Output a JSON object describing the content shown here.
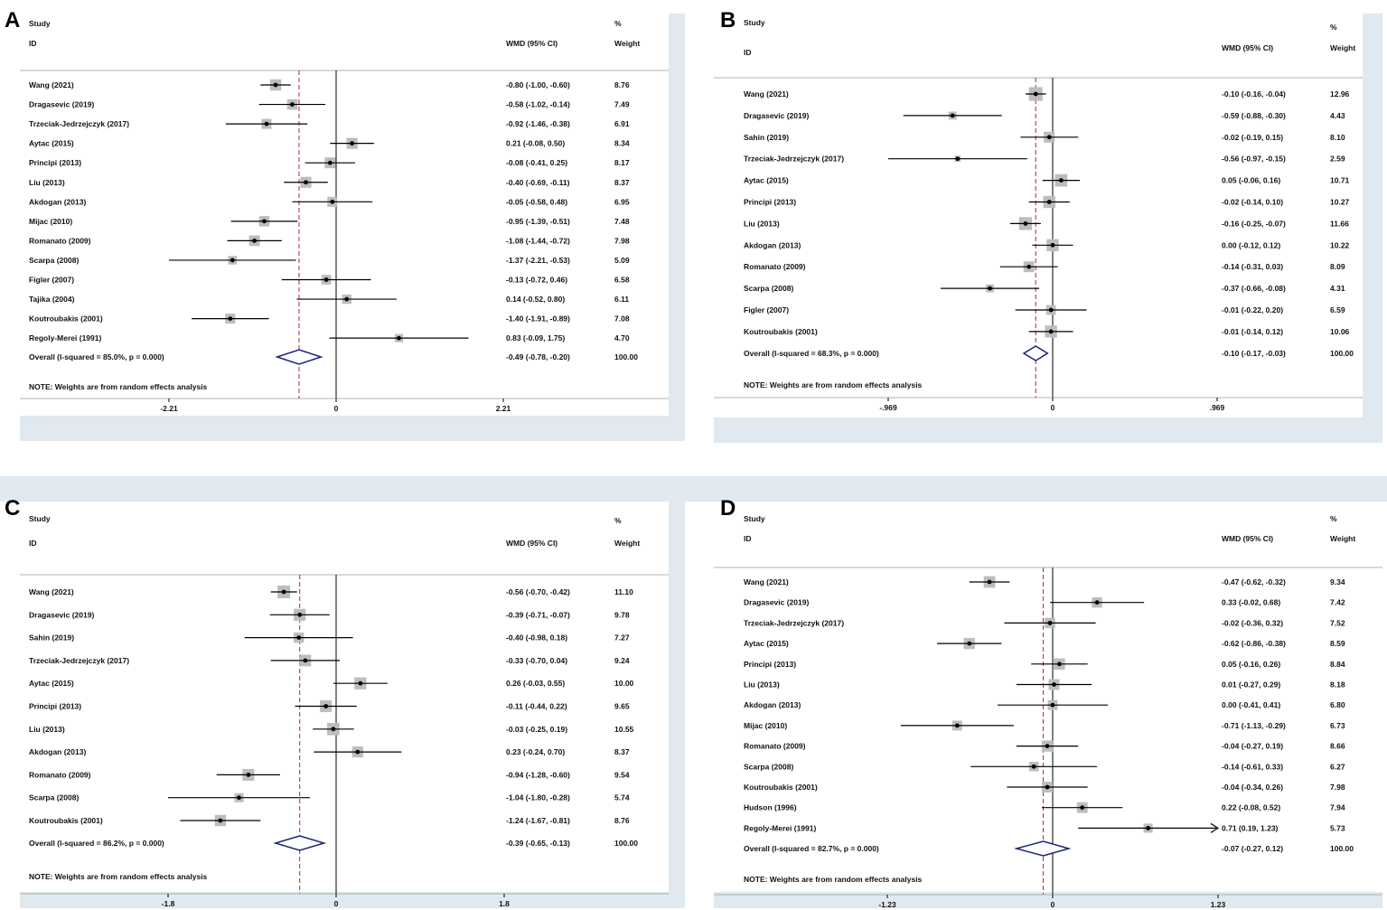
{
  "chart_data": [
    {
      "type": "forest",
      "panel": "A",
      "header": {
        "study": "Study",
        "id": "ID",
        "effect": "WMD (95% CI)",
        "pct": "%",
        "weight": "Weight"
      },
      "xlim": [
        -2.21,
        2.21
      ],
      "ticks": [
        {
          "v": -2.21,
          "label": "-2.21"
        },
        {
          "v": 0,
          "label": "0"
        },
        {
          "v": 2.21,
          "label": "2.21"
        }
      ],
      "studies": [
        {
          "id": "Wang (2021)",
          "est": -0.8,
          "lo": -1.0,
          "hi": -0.6,
          "weight": 8.76
        },
        {
          "id": "Dragasevic (2019)",
          "est": -0.58,
          "lo": -1.02,
          "hi": -0.14,
          "weight": 7.49
        },
        {
          "id": "Trzeciak-Jedrzejczyk (2017)",
          "est": -0.92,
          "lo": -1.46,
          "hi": -0.38,
          "weight": 6.91
        },
        {
          "id": "Aytac (2015)",
          "est": 0.21,
          "lo": -0.08,
          "hi": 0.5,
          "weight": 8.34
        },
        {
          "id": "Principi (2013)",
          "est": -0.08,
          "lo": -0.41,
          "hi": 0.25,
          "weight": 8.17
        },
        {
          "id": "Liu (2013)",
          "est": -0.4,
          "lo": -0.69,
          "hi": -0.11,
          "weight": 8.37
        },
        {
          "id": "Akdogan (2013)",
          "est": -0.05,
          "lo": -0.58,
          "hi": 0.48,
          "weight": 6.95
        },
        {
          "id": "Mijac (2010)",
          "est": -0.95,
          "lo": -1.39,
          "hi": -0.51,
          "weight": 7.48
        },
        {
          "id": "Romanato (2009)",
          "est": -1.08,
          "lo": -1.44,
          "hi": -0.72,
          "weight": 7.98
        },
        {
          "id": "Scarpa (2008)",
          "est": -1.37,
          "lo": -2.21,
          "hi": -0.53,
          "weight": 5.09
        },
        {
          "id": "Figler (2007)",
          "est": -0.13,
          "lo": -0.72,
          "hi": 0.46,
          "weight": 6.58
        },
        {
          "id": "Tajika (2004)",
          "est": 0.14,
          "lo": -0.52,
          "hi": 0.8,
          "weight": 6.11
        },
        {
          "id": "Koutroubakis (2001)",
          "est": -1.4,
          "lo": -1.91,
          "hi": -0.89,
          "weight": 7.08
        },
        {
          "id": "Regoly-Merei (1991)",
          "est": 0.83,
          "lo": -0.09,
          "hi": 1.75,
          "weight": 4.7
        }
      ],
      "overall": {
        "label": "Overall  (I-squared = 85.0%, p = 0.000)",
        "est": -0.49,
        "lo": -0.78,
        "hi": -0.2,
        "weight": 100.0
      },
      "note": "NOTE: Weights are from random effects analysis"
    },
    {
      "type": "forest",
      "panel": "B",
      "header": {
        "study": "Study",
        "id": "ID",
        "effect": "WMD (95% CI)",
        "pct": "%",
        "weight": "Weight"
      },
      "xlim": [
        -0.969,
        0.969
      ],
      "ticks": [
        {
          "v": -0.969,
          "label": "-.969"
        },
        {
          "v": 0,
          "label": "0"
        },
        {
          "v": 0.969,
          "label": ".969"
        }
      ],
      "studies": [
        {
          "id": "Wang (2021)",
          "est": -0.1,
          "lo": -0.16,
          "hi": -0.04,
          "weight": 12.96
        },
        {
          "id": "Dragasevic (2019)",
          "est": -0.59,
          "lo": -0.88,
          "hi": -0.3,
          "weight": 4.43
        },
        {
          "id": "Sahin (2019)",
          "est": -0.02,
          "lo": -0.19,
          "hi": 0.15,
          "weight": 8.1
        },
        {
          "id": "Trzeciak-Jedrzejczyk (2017)",
          "est": -0.56,
          "lo": -0.97,
          "hi": -0.15,
          "weight": 2.59
        },
        {
          "id": "Aytac (2015)",
          "est": 0.05,
          "lo": -0.06,
          "hi": 0.16,
          "weight": 10.71
        },
        {
          "id": "Principi (2013)",
          "est": -0.02,
          "lo": -0.14,
          "hi": 0.1,
          "weight": 10.27
        },
        {
          "id": "Liu (2013)",
          "est": -0.16,
          "lo": -0.25,
          "hi": -0.07,
          "weight": 11.66
        },
        {
          "id": "Akdogan (2013)",
          "est": 0.0,
          "lo": -0.12,
          "hi": 0.12,
          "weight": 10.22
        },
        {
          "id": "Romanato (2009)",
          "est": -0.14,
          "lo": -0.31,
          "hi": 0.03,
          "weight": 8.09
        },
        {
          "id": "Scarpa (2008)",
          "est": -0.37,
          "lo": -0.66,
          "hi": -0.08,
          "weight": 4.31
        },
        {
          "id": "Figler (2007)",
          "est": -0.01,
          "lo": -0.22,
          "hi": 0.2,
          "weight": 6.59
        },
        {
          "id": "Koutroubakis (2001)",
          "est": -0.01,
          "lo": -0.14,
          "hi": 0.12,
          "weight": 10.06
        }
      ],
      "overall": {
        "label": "Overall  (I-squared = 68.3%, p = 0.000)",
        "est": -0.1,
        "lo": -0.17,
        "hi": -0.03,
        "weight": 100.0
      },
      "note": "NOTE: Weights are from random effects analysis"
    },
    {
      "type": "forest",
      "panel": "C",
      "header": {
        "study": "Study",
        "id": "ID",
        "effect": "WMD (95% CI)",
        "pct": "%",
        "weight": "Weight"
      },
      "xlim": [
        -1.8,
        1.8
      ],
      "ticks": [
        {
          "v": -1.8,
          "label": "-1.8"
        },
        {
          "v": 0,
          "label": "0"
        },
        {
          "v": 1.8,
          "label": "1.8"
        }
      ],
      "studies": [
        {
          "id": "Wang (2021)",
          "est": -0.56,
          "lo": -0.7,
          "hi": -0.42,
          "weight": 11.1
        },
        {
          "id": "Dragasevic (2019)",
          "est": -0.39,
          "lo": -0.71,
          "hi": -0.07,
          "weight": 9.78
        },
        {
          "id": "Sahin (2019)",
          "est": -0.4,
          "lo": -0.98,
          "hi": 0.18,
          "weight": 7.27
        },
        {
          "id": "Trzeciak-Jedrzejczyk (2017)",
          "est": -0.33,
          "lo": -0.7,
          "hi": 0.04,
          "weight": 9.24
        },
        {
          "id": "Aytac (2015)",
          "est": 0.26,
          "lo": -0.03,
          "hi": 0.55,
          "weight": 10.0
        },
        {
          "id": "Principi (2013)",
          "est": -0.11,
          "lo": -0.44,
          "hi": 0.22,
          "weight": 9.65
        },
        {
          "id": "Liu (2013)",
          "est": -0.03,
          "lo": -0.25,
          "hi": 0.19,
          "weight": 10.55
        },
        {
          "id": "Akdogan (2013)",
          "est": 0.23,
          "lo": -0.24,
          "hi": 0.7,
          "weight": 8.37
        },
        {
          "id": "Romanato (2009)",
          "est": -0.94,
          "lo": -1.28,
          "hi": -0.6,
          "weight": 9.54
        },
        {
          "id": "Scarpa (2008)",
          "est": -1.04,
          "lo": -1.8,
          "hi": -0.28,
          "weight": 5.74
        },
        {
          "id": "Koutroubakis (2001)",
          "est": -1.24,
          "lo": -1.67,
          "hi": -0.81,
          "weight": 8.76
        }
      ],
      "overall": {
        "label": "Overall  (I-squared = 86.2%, p = 0.000)",
        "est": -0.39,
        "lo": -0.65,
        "hi": -0.13,
        "weight": 100.0
      },
      "note": "NOTE: Weights are from random effects analysis"
    },
    {
      "type": "forest",
      "panel": "D",
      "header": {
        "study": "Study",
        "id": "ID",
        "effect": "WMD (95% CI)",
        "pct": "%",
        "weight": "Weight"
      },
      "xlim": [
        -1.23,
        1.23
      ],
      "ticks": [
        {
          "v": -1.23,
          "label": "-1.23"
        },
        {
          "v": 0,
          "label": "0"
        },
        {
          "v": 1.23,
          "label": "1.23"
        }
      ],
      "studies": [
        {
          "id": "Wang (2021)",
          "est": -0.47,
          "lo": -0.62,
          "hi": -0.32,
          "weight": 9.34
        },
        {
          "id": "Dragasevic (2019)",
          "est": 0.33,
          "lo": -0.02,
          "hi": 0.68,
          "weight": 7.42
        },
        {
          "id": "Trzeciak-Jedrzejczyk (2017)",
          "est": -0.02,
          "lo": -0.36,
          "hi": 0.32,
          "weight": 7.52
        },
        {
          "id": "Aytac (2015)",
          "est": -0.62,
          "lo": -0.86,
          "hi": -0.38,
          "weight": 8.59
        },
        {
          "id": "Principi (2013)",
          "est": 0.05,
          "lo": -0.16,
          "hi": 0.26,
          "weight": 8.84
        },
        {
          "id": "Liu (2013)",
          "est": 0.01,
          "lo": -0.27,
          "hi": 0.29,
          "weight": 8.18
        },
        {
          "id": "Akdogan (2013)",
          "est": 0.0,
          "lo": -0.41,
          "hi": 0.41,
          "weight": 6.8
        },
        {
          "id": "Mijac (2010)",
          "est": -0.71,
          "lo": -1.13,
          "hi": -0.29,
          "weight": 6.73
        },
        {
          "id": "Romanato (2009)",
          "est": -0.04,
          "lo": -0.27,
          "hi": 0.19,
          "weight": 8.66
        },
        {
          "id": "Scarpa (2008)",
          "est": -0.14,
          "lo": -0.61,
          "hi": 0.33,
          "weight": 6.27
        },
        {
          "id": "Koutroubakis (2001)",
          "est": -0.04,
          "lo": -0.34,
          "hi": 0.26,
          "weight": 7.98
        },
        {
          "id": "Hudson (1996)",
          "est": 0.22,
          "lo": -0.08,
          "hi": 0.52,
          "weight": 7.94
        },
        {
          "id": "Regoly-Merei (1991)",
          "est": 0.71,
          "lo": 0.19,
          "hi": 1.23,
          "weight": 5.73
        }
      ],
      "overall": {
        "label": "Overall  (I-squared = 82.7%, p = 0.000)",
        "est": -0.07,
        "lo": -0.27,
        "hi": 0.12,
        "weight": 100.0
      },
      "note": "NOTE: Weights are from random effects analysis"
    }
  ],
  "colors": {
    "frame": "#dfe9ef",
    "diamond": "#1a237e",
    "dashed": "#a52a2a",
    "square": "#bdbdbd"
  }
}
